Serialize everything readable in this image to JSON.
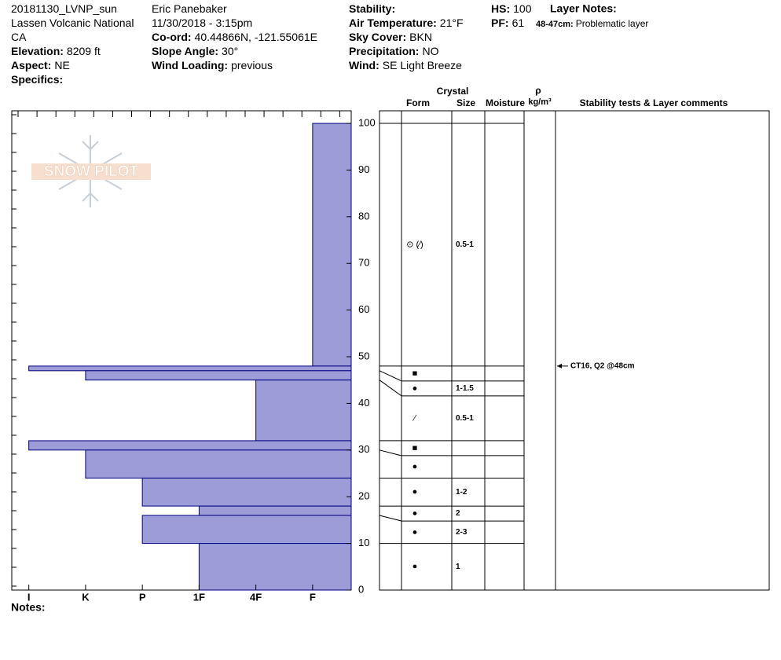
{
  "header": {
    "columns": [
      [
        {
          "value": "20181130_LVNP_sun"
        },
        {
          "value": "Lassen Volcanic National"
        },
        {
          "value": "CA"
        },
        {
          "label": "Elevation:",
          "value": "8209 ft"
        },
        {
          "label": "Aspect:",
          "value": "NE"
        },
        {
          "label": "Specifics:"
        }
      ],
      [
        {
          "value": "Eric Panebaker"
        },
        {
          "value": "11/30/2018 - 3:15pm"
        },
        {
          "label": "Co-ord:",
          "value": "40.44866N, -121.55061E"
        },
        {
          "label": "Slope Angle:",
          "value": "30°"
        },
        {
          "label": "Wind Loading:",
          "value": "previous"
        }
      ],
      [
        {
          "label": "Stability:"
        },
        {
          "label": "Air Temperature:",
          "value": "21°F"
        },
        {
          "label": "Sky Cover:",
          "value": "BKN"
        },
        {
          "label": "Precipitation:",
          "value": "NO"
        },
        {
          "label": "Wind:",
          "value": "SE Light Breeze"
        }
      ],
      [
        {
          "label": "HS:",
          "value": "100"
        },
        {
          "label": "PF:",
          "value": "61"
        }
      ]
    ],
    "layer_notes": {
      "title": "Layer Notes:",
      "items": [
        {
          "label": "48-47cm:",
          "value": "Problematic layer"
        }
      ]
    },
    "notes": "Notes:"
  },
  "logo": "SNOW PILOT",
  "table_headers": {
    "crystal": "Crystal",
    "form": "Form",
    "size": "Size",
    "moisture": "Moisture",
    "density": "ρ",
    "density_unit": "kg/m³",
    "comments": "Stability tests & Layer comments"
  },
  "chart_data": {
    "type": "snow-profile",
    "ylim": [
      0,
      102.7
    ],
    "yticks": [
      0,
      10,
      20,
      30,
      40,
      50,
      60,
      70,
      80,
      90,
      100
    ],
    "xlim": [
      0.7,
      6.68
    ],
    "xticks": [
      {
        "value": 1,
        "label": "I"
      },
      {
        "value": 2,
        "label": "K"
      },
      {
        "value": 3,
        "label": "P"
      },
      {
        "value": 4,
        "label": "1F"
      },
      {
        "value": 5,
        "label": "4F"
      },
      {
        "value": 6,
        "label": "F"
      }
    ],
    "color": "#9c9cd9",
    "edge_color": "#000080",
    "layers": [
      {
        "top": 100,
        "bottom": 48,
        "hardness": 6,
        "form": "⊙ (∕)",
        "size": "0.5-1"
      },
      {
        "top": 48,
        "bottom": 47,
        "hardness": 1,
        "form": "■"
      },
      {
        "top": 47,
        "bottom": 45,
        "hardness": 2,
        "form": "●",
        "size": "1-1.5"
      },
      {
        "top": 45,
        "bottom": 32,
        "hardness": 5,
        "form": "∕",
        "size": "0.5-1"
      },
      {
        "top": 32,
        "bottom": 30,
        "hardness": 1,
        "form": "■"
      },
      {
        "top": 30,
        "bottom": 24,
        "hardness": 2,
        "form": "●"
      },
      {
        "top": 24,
        "bottom": 18,
        "hardness": 3,
        "form": "●",
        "size": "1-2"
      },
      {
        "top": 18,
        "bottom": 16,
        "hardness": 4,
        "form": "●",
        "size": "2"
      },
      {
        "top": 16,
        "bottom": 10,
        "hardness": 3,
        "form": "●",
        "size": "2-3"
      },
      {
        "top": 10,
        "bottom": 0,
        "hardness": 4,
        "form": "●",
        "size": "1"
      }
    ],
    "stability_tests": [
      {
        "height": 48,
        "label": "CT16, Q2 @48cm"
      }
    ]
  }
}
